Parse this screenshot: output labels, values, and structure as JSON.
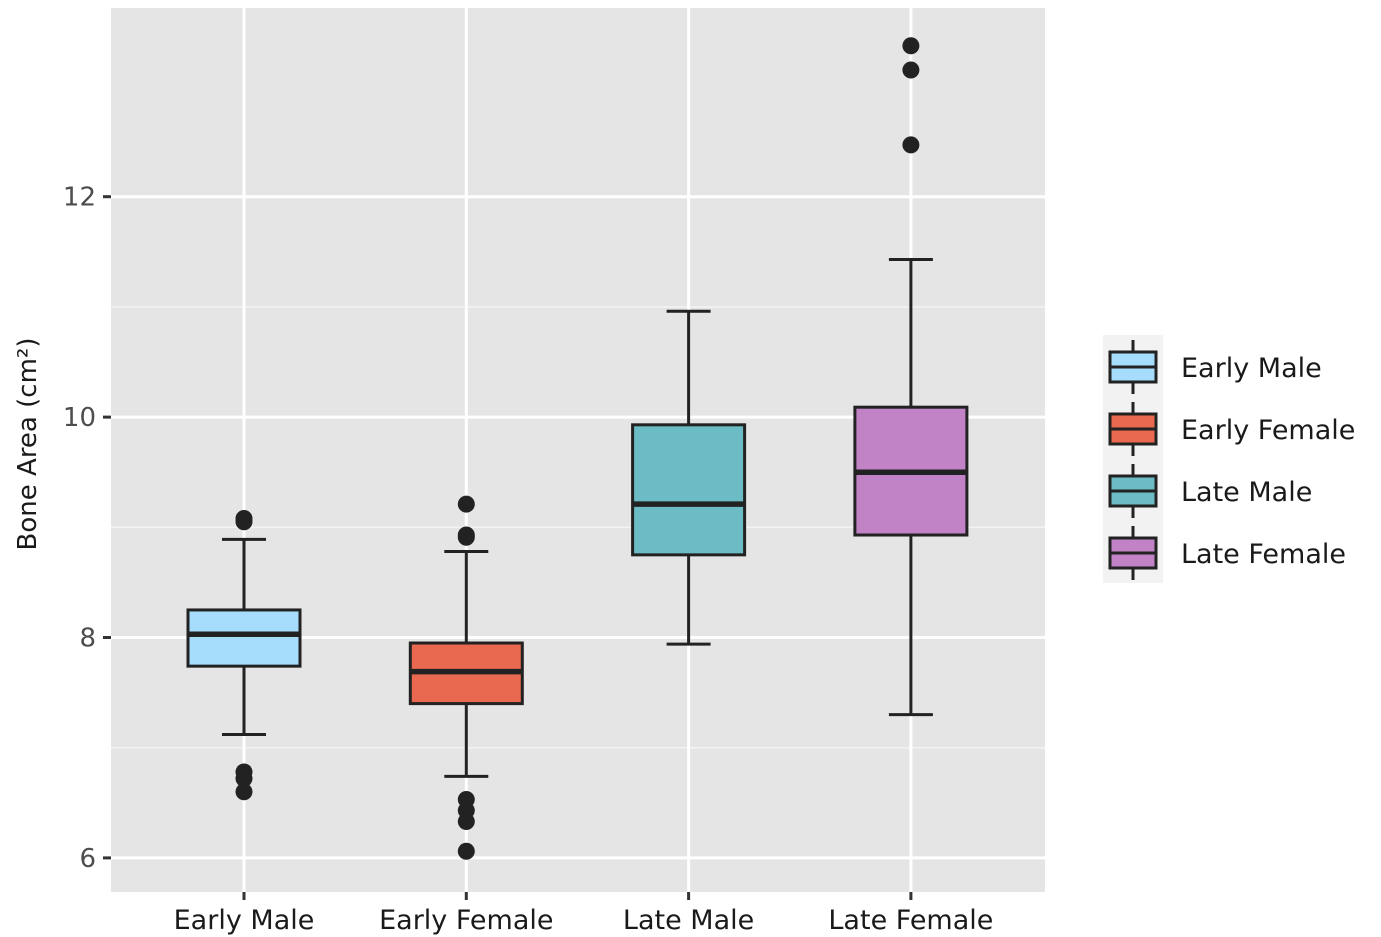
{
  "chart_data": {
    "type": "boxplot",
    "title": "",
    "xlabel": "",
    "ylabel": "Bone Area (cm²)",
    "ylim": [
      5.7,
      13.7
    ],
    "y_ticks": [
      6,
      8,
      10,
      12
    ],
    "y_tick_labels": [
      "6",
      "8",
      "10",
      "12"
    ],
    "grid": true,
    "legend_position": "right",
    "categories": [
      "Early Male",
      "Early Female",
      "Late Male",
      "Late Female"
    ],
    "series": [
      {
        "name": "Early Male",
        "color": "#a6dcfc",
        "whisker_low": 7.12,
        "q1": 7.74,
        "median": 8.03,
        "q3": 8.25,
        "whisker_high": 8.89,
        "outliers": [
          9.05,
          9.08,
          6.6,
          6.72,
          6.78
        ]
      },
      {
        "name": "Early Female",
        "color": "#e8694f",
        "whisker_low": 6.74,
        "q1": 7.4,
        "median": 7.69,
        "q3": 7.95,
        "whisker_high": 8.78,
        "outliers": [
          9.21,
          8.93,
          8.91,
          6.53,
          6.43,
          6.33,
          6.06
        ]
      },
      {
        "name": "Late Male",
        "color": "#6bbcc4",
        "whisker_low": 7.94,
        "q1": 8.75,
        "median": 9.21,
        "q3": 9.93,
        "whisker_high": 10.96,
        "outliers": []
      },
      {
        "name": "Late Female",
        "color": "#c183c6",
        "whisker_low": 7.3,
        "q1": 8.93,
        "median": 9.5,
        "q3": 10.09,
        "whisker_high": 11.43,
        "outliers": [
          13.37,
          13.15,
          12.47
        ]
      }
    ]
  }
}
